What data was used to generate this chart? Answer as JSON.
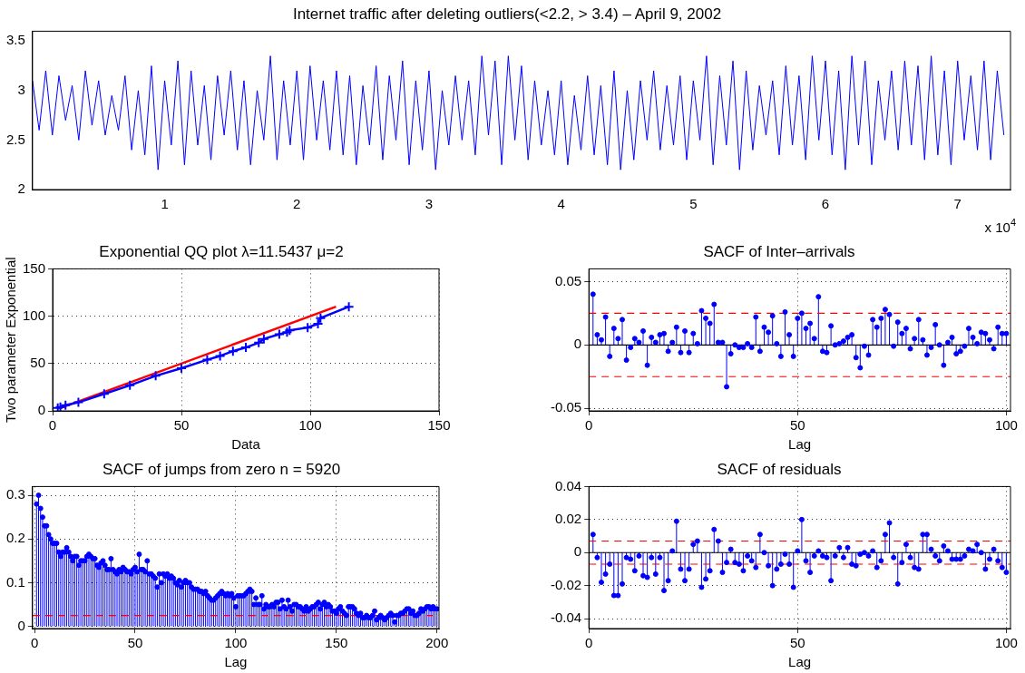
{
  "chart_data": [
    {
      "type": "line",
      "title": "Internet traffic after deleting outliers(<2.2, > 3.4) – April 9, 2002",
      "color": "#0000ff",
      "marker": "none",
      "x": [
        0,
        0.05,
        0.1,
        0.15,
        0.2,
        0.25,
        0.3,
        0.35,
        0.4,
        0.45,
        0.5,
        0.55,
        0.6,
        0.65,
        0.7,
        0.75,
        0.8,
        0.85,
        0.9,
        0.95,
        1,
        1.05,
        1.1,
        1.15,
        1.2,
        1.25,
        1.3,
        1.35,
        1.4,
        1.45,
        1.5,
        1.55,
        1.6,
        1.65,
        1.7,
        1.75,
        1.8,
        1.85,
        1.9,
        1.95,
        2,
        2.05,
        2.1,
        2.15,
        2.2,
        2.25,
        2.3,
        2.35,
        2.4,
        2.45,
        2.5,
        2.55,
        2.6,
        2.65,
        2.7,
        2.75,
        2.8,
        2.85,
        2.9,
        2.95,
        3,
        3.05,
        3.1,
        3.15,
        3.2,
        3.25,
        3.3,
        3.35,
        3.4,
        3.45,
        3.5,
        3.55,
        3.6,
        3.65,
        3.7,
        3.75,
        3.8,
        3.85,
        3.9,
        3.95,
        4,
        4.05,
        4.1,
        4.15,
        4.2,
        4.25,
        4.3,
        4.35,
        4.4,
        4.45,
        4.5,
        4.55,
        4.6,
        4.65,
        4.7,
        4.75,
        4.8,
        4.85,
        4.9,
        4.95,
        5,
        5.05,
        5.1,
        5.15,
        5.2,
        5.25,
        5.3,
        5.35,
        5.4,
        5.45,
        5.5,
        5.55,
        5.6,
        5.65,
        5.7,
        5.75,
        5.8,
        5.85,
        5.9,
        5.95,
        6,
        6.05,
        6.1,
        6.15,
        6.2,
        6.25,
        6.3,
        6.35,
        6.4,
        6.45,
        6.5,
        6.55,
        6.6,
        6.65,
        6.7,
        6.75,
        6.8,
        6.85,
        6.9,
        6.95,
        7,
        7.05,
        7.1,
        7.15,
        7.2,
        7.25,
        7.3,
        7.35
      ],
      "values": [
        3.1,
        2.6,
        3.2,
        2.55,
        3.15,
        2.7,
        3.05,
        2.5,
        3.2,
        2.65,
        3.1,
        2.55,
        2.95,
        2.6,
        3.15,
        2.4,
        3.0,
        2.35,
        3.25,
        2.2,
        3.1,
        2.45,
        3.3,
        2.25,
        3.2,
        2.45,
        3.05,
        2.3,
        3.15,
        2.55,
        3.2,
        2.4,
        3.1,
        2.25,
        3.0,
        2.5,
        3.35,
        2.3,
        3.1,
        2.45,
        3.2,
        2.3,
        3.25,
        2.5,
        3.1,
        2.4,
        3.2,
        2.35,
        3.15,
        2.25,
        3.05,
        2.45,
        3.25,
        2.3,
        3.15,
        2.5,
        3.3,
        2.25,
        3.1,
        2.4,
        3.2,
        2.2,
        3.0,
        2.45,
        3.15,
        2.5,
        3.1,
        2.35,
        3.35,
        2.55,
        3.3,
        2.25,
        3.35,
        2.5,
        3.25,
        2.3,
        3.1,
        2.45,
        3.0,
        2.35,
        3.1,
        2.25,
        2.95,
        2.4,
        3.15,
        2.35,
        3.05,
        2.25,
        3.2,
        2.2,
        3.0,
        2.3,
        3.1,
        2.5,
        3.2,
        2.4,
        3.05,
        2.45,
        3.15,
        2.3,
        3.1,
        2.5,
        3.35,
        2.25,
        3.15,
        2.45,
        3.3,
        2.2,
        3.2,
        2.4,
        3.05,
        2.55,
        3.1,
        2.35,
        3.25,
        2.45,
        3.15,
        2.3,
        3.35,
        2.5,
        3.3,
        2.35,
        3.2,
        2.2,
        3.35,
        2.45,
        3.3,
        2.25,
        3.1,
        2.5,
        3.2,
        2.4,
        3.3,
        2.45,
        3.25,
        2.3,
        3.35,
        2.35,
        3.2,
        2.25,
        3.3,
        2.5,
        3.15,
        2.4,
        3.3,
        2.3,
        3.2,
        2.55
      ],
      "xlim": [
        0,
        7.4
      ],
      "xticks": [
        1,
        2,
        3,
        4,
        5,
        6,
        7
      ],
      "ylim": [
        2,
        3.6
      ],
      "yticks": [
        2,
        2.5,
        3,
        3.5
      ],
      "grid": false,
      "annotations": [
        "x 10$^{4}$"
      ]
    },
    {
      "type": "line",
      "title": "Exponential QQ plot λ=11.5437 μ=2",
      "xlabel": "Data",
      "ylabel": "Two parameter Exponential",
      "xlim": [
        0,
        150
      ],
      "xticks": [
        0,
        50,
        100,
        150
      ],
      "ylim": [
        0,
        150
      ],
      "yticks": [
        0,
        50,
        100,
        150
      ],
      "grid": true,
      "series": [
        {
          "color": "#0000ff",
          "marker": "cross",
          "x": [
            2,
            3,
            5,
            10,
            20,
            30,
            40,
            50,
            60,
            65,
            70,
            75,
            80,
            82,
            88,
            91,
            92,
            99,
            103,
            104,
            115
          ],
          "values": [
            3,
            4,
            6,
            9,
            18,
            27,
            37,
            45,
            54,
            58,
            63,
            67,
            72,
            76,
            81,
            83,
            85,
            88,
            92,
            98,
            110
          ]
        },
        {
          "color": "#ff0000",
          "marker": "none",
          "x": [
            3,
            110
          ],
          "values": [
            3,
            110
          ]
        }
      ]
    },
    {
      "type": "lollipop",
      "title": "SACF of Inter–arrivals",
      "xlabel": "Lag",
      "xlim": [
        0,
        101
      ],
      "xticks": [
        0,
        50,
        100
      ],
      "ylim": [
        -0.052,
        0.06
      ],
      "yticks": [
        -0.05,
        0,
        0.05
      ],
      "grid": true,
      "color": "#0000ff",
      "marker": "circle",
      "x": [
        1,
        2,
        3,
        4,
        5,
        6,
        7,
        8,
        9,
        10,
        11,
        12,
        13,
        14,
        15,
        16,
        17,
        18,
        19,
        20,
        21,
        22,
        23,
        24,
        25,
        26,
        27,
        28,
        29,
        30,
        31,
        32,
        33,
        34,
        35,
        36,
        37,
        38,
        39,
        40,
        41,
        42,
        43,
        44,
        45,
        46,
        47,
        48,
        49,
        50,
        51,
        52,
        53,
        54,
        55,
        56,
        57,
        58,
        59,
        60,
        61,
        62,
        63,
        64,
        65,
        66,
        67,
        68,
        69,
        70,
        71,
        72,
        73,
        74,
        75,
        76,
        77,
        78,
        79,
        80,
        81,
        82,
        83,
        84,
        85,
        86,
        87,
        88,
        89,
        90,
        91,
        92,
        93,
        94,
        95,
        96,
        97,
        98,
        99,
        100
      ],
      "values": [
        0.04,
        0.008,
        0.004,
        0.022,
        -0.009,
        0.013,
        0.005,
        0.02,
        -0.012,
        -0.002,
        0.005,
        0.002,
        0.011,
        -0.016,
        0.006,
        0.002,
        0.008,
        0.009,
        -0.005,
        0.002,
        0.014,
        -0.006,
        0.011,
        -0.006,
        0.009,
        0.001,
        0.027,
        0.021,
        0.017,
        0.032,
        0.002,
        0.002,
        -0.033,
        -0.007,
        0,
        -0.002,
        -0.002,
        0.001,
        -0.002,
        0.022,
        -0.005,
        0.014,
        0.01,
        0.023,
        0.001,
        -0.009,
        0.026,
        0.008,
        -0.009,
        0.021,
        0.025,
        0.013,
        0.017,
        0.005,
        0.038,
        -0.005,
        -0.006,
        0.015,
        0,
        0.001,
        0.003,
        0.006,
        0.008,
        -0.01,
        -0.018,
        -0.001,
        -0.008,
        0.02,
        0.014,
        0.021,
        0.028,
        0.024,
        -0.001,
        0.018,
        0.009,
        0.013,
        -0.003,
        0.005,
        0.02,
        0.004,
        -0.008,
        -0.002,
        0.016,
        0,
        -0.016,
        0.002,
        0.006,
        -0.007,
        -0.005,
        -0.001,
        0.013,
        0.006,
        0.001,
        0.01,
        0.009,
        0.004,
        -0.003,
        0.014,
        0.009,
        0.009
      ],
      "ref_lines": [
        {
          "axis": "y",
          "value": 0.025,
          "color": "#ff0000",
          "line_style": "dashed"
        },
        {
          "axis": "y",
          "value": -0.025,
          "color": "#ff0000",
          "line_style": "dashed"
        },
        {
          "axis": "y",
          "value": 0,
          "color": "#000000",
          "line_style": "solid"
        }
      ]
    },
    {
      "type": "lollipop",
      "title": "SACF of jumps from zero n = 5920",
      "xlabel": "Lag",
      "xlim": [
        -1,
        201
      ],
      "xticks": [
        0,
        50,
        100,
        150,
        200
      ],
      "ylim": [
        -0.005,
        0.32
      ],
      "yticks": [
        0,
        0.1,
        0.2,
        0.3
      ],
      "grid": true,
      "color": "#0000ff",
      "marker": "circle",
      "x": [
        1,
        2,
        3,
        4,
        5,
        6,
        7,
        8,
        9,
        10,
        11,
        12,
        13,
        14,
        15,
        16,
        17,
        18,
        19,
        20,
        21,
        22,
        23,
        24,
        25,
        26,
        27,
        28,
        29,
        30,
        31,
        32,
        33,
        34,
        35,
        36,
        37,
        38,
        39,
        40,
        41,
        42,
        43,
        44,
        45,
        46,
        47,
        48,
        49,
        50,
        51,
        52,
        53,
        54,
        55,
        56,
        57,
        58,
        59,
        60,
        61,
        62,
        63,
        64,
        65,
        66,
        67,
        68,
        69,
        70,
        71,
        72,
        73,
        74,
        75,
        76,
        77,
        78,
        79,
        80,
        81,
        82,
        83,
        84,
        85,
        86,
        87,
        88,
        89,
        90,
        91,
        92,
        93,
        94,
        95,
        96,
        97,
        98,
        99,
        100,
        101,
        102,
        103,
        104,
        105,
        106,
        107,
        108,
        109,
        110,
        111,
        112,
        113,
        114,
        115,
        116,
        117,
        118,
        119,
        120,
        121,
        122,
        123,
        124,
        125,
        126,
        127,
        128,
        129,
        130,
        131,
        132,
        133,
        134,
        135,
        136,
        137,
        138,
        139,
        140,
        141,
        142,
        143,
        144,
        145,
        146,
        147,
        148,
        149,
        150,
        151,
        152,
        153,
        154,
        155,
        156,
        157,
        158,
        159,
        160,
        161,
        162,
        163,
        164,
        165,
        166,
        167,
        168,
        169,
        170,
        171,
        172,
        173,
        174,
        175,
        176,
        177,
        178,
        179,
        180,
        181,
        182,
        183,
        184,
        185,
        186,
        187,
        188,
        189,
        190,
        191,
        192,
        193,
        194,
        195,
        196,
        197,
        198,
        199,
        200
      ],
      "values": [
        0.28,
        0.3,
        0.27,
        0.25,
        0.23,
        0.23,
        0.21,
        0.2,
        0.19,
        0.19,
        0.19,
        0.17,
        0.16,
        0.17,
        0.17,
        0.18,
        0.17,
        0.16,
        0.15,
        0.16,
        0.16,
        0.14,
        0.15,
        0.15,
        0.15,
        0.16,
        0.165,
        0.16,
        0.155,
        0.155,
        0.14,
        0.135,
        0.145,
        0.15,
        0.14,
        0.13,
        0.13,
        0.155,
        0.13,
        0.125,
        0.12,
        0.13,
        0.125,
        0.135,
        0.13,
        0.125,
        0.125,
        0.12,
        0.13,
        0.135,
        0.125,
        0.165,
        0.13,
        0.13,
        0.125,
        0.15,
        0.12,
        0.12,
        0.115,
        0.11,
        0.09,
        0.12,
        0.1,
        0.12,
        0.115,
        0.12,
        0.11,
        0.115,
        0.11,
        0.1,
        0.095,
        0.105,
        0.09,
        0.1,
        0.105,
        0.1,
        0.1,
        0.09,
        0.085,
        0.085,
        0.085,
        0.08,
        0.08,
        0.075,
        0.08,
        0.07,
        0.065,
        0.06,
        0.06,
        0.065,
        0.07,
        0.075,
        0.08,
        0.075,
        0.07,
        0.075,
        0.07,
        0.075,
        0.065,
        0.045,
        0.07,
        0.07,
        0.07,
        0.07,
        0.075,
        0.08,
        0.085,
        0.08,
        0.05,
        0.065,
        0.05,
        0.05,
        0.07,
        0.04,
        0.05,
        0.045,
        0.045,
        0.05,
        0.045,
        0.055,
        0.055,
        0.04,
        0.06,
        0.045,
        0.04,
        0.06,
        0.045,
        0.035,
        0.05,
        0.05,
        0.045,
        0.045,
        0.04,
        0.035,
        0.045,
        0.035,
        0.04,
        0.045,
        0.045,
        0.05,
        0.055,
        0.04,
        0.05,
        0.055,
        0.045,
        0.05,
        0.045,
        0.035,
        0.035,
        0.03,
        0.04,
        0.045,
        0.035,
        0.03,
        0.025,
        0.045,
        0.045,
        0.045,
        0.04,
        0.03,
        0.025,
        0.03,
        0.02,
        0.02,
        0.025,
        0.02,
        0.02,
        0.025,
        0.035,
        0.015,
        0.02,
        0.025,
        0.02,
        0.015,
        0.02,
        0.025,
        0.03,
        0.025,
        0.01,
        0.025,
        0.025,
        0.03,
        0.03,
        0.035,
        0.04,
        0.04,
        0.03,
        0.035,
        0.025,
        0.025,
        0.03,
        0.04,
        0.035,
        0.04,
        0.045,
        0.045,
        0.04,
        0.045,
        0.04,
        0.04
      ],
      "ref_lines": [
        {
          "axis": "y",
          "value": 0.025,
          "color": "#ff0000",
          "line_style": "dashed"
        }
      ]
    },
    {
      "type": "lollipop",
      "title": "SACF of residuals",
      "xlabel": "Lag",
      "xlim": [
        0,
        101
      ],
      "xticks": [
        0,
        50,
        100
      ],
      "ylim": [
        -0.046,
        0.04
      ],
      "yticks": [
        -0.04,
        -0.02,
        0,
        0.02,
        0.04
      ],
      "grid": true,
      "color": "#0000ff",
      "marker": "circle",
      "x": [
        1,
        2,
        3,
        4,
        5,
        6,
        7,
        8,
        9,
        10,
        11,
        12,
        13,
        14,
        15,
        16,
        17,
        18,
        19,
        20,
        21,
        22,
        23,
        24,
        25,
        26,
        27,
        28,
        29,
        30,
        31,
        32,
        33,
        34,
        35,
        36,
        37,
        38,
        39,
        40,
        41,
        42,
        43,
        44,
        45,
        46,
        47,
        48,
        49,
        50,
        51,
        52,
        53,
        54,
        55,
        56,
        57,
        58,
        59,
        60,
        61,
        62,
        63,
        64,
        65,
        66,
        67,
        68,
        69,
        70,
        71,
        72,
        73,
        74,
        75,
        76,
        77,
        78,
        79,
        80,
        81,
        82,
        83,
        84,
        85,
        86,
        87,
        88,
        89,
        90,
        91,
        92,
        93,
        94,
        95,
        96,
        97,
        98,
        99,
        100
      ],
      "values": [
        0.011,
        -0.003,
        -0.018,
        -0.013,
        -0.007,
        -0.026,
        -0.026,
        -0.019,
        -0.003,
        -0.004,
        -0.011,
        -0.002,
        -0.014,
        -0.015,
        -0.003,
        -0.013,
        -0.003,
        -0.023,
        -0.017,
        0.001,
        0.019,
        -0.01,
        -0.017,
        -0.01,
        0.005,
        0.007,
        -0.021,
        -0.016,
        -0.011,
        0.014,
        0.007,
        -0.012,
        -0.006,
        0.002,
        -0.006,
        -0.007,
        -0.011,
        -0.002,
        -0.005,
        -0.009,
        0.011,
        0,
        -0.008,
        -0.02,
        -0.01,
        -0.007,
        -0.001,
        -0.007,
        -0.021,
        0.001,
        0.02,
        -0.005,
        -0.012,
        -0.002,
        0.001,
        -0.002,
        -0.003,
        -0.017,
        -0.002,
        0.003,
        -0.003,
        0.003,
        -0.007,
        -0.008,
        -0.001,
        0,
        -0.002,
        0.001,
        -0.009,
        -0.005,
        0.011,
        0.018,
        -0.003,
        -0.019,
        -0.006,
        0.005,
        -0.003,
        -0.009,
        -0.01,
        0.011,
        0.011,
        0.002,
        -0.002,
        -0.005,
        0.004,
        0.001,
        -0.004,
        -0.004,
        -0.004,
        -0.002,
        0.002,
        0.001,
        0.005,
        0,
        -0.01,
        -0.004,
        0.002,
        -0.005,
        -0.009,
        -0.012
      ],
      "ref_lines": [
        {
          "axis": "y",
          "value": 0.007,
          "color": "#ff0000",
          "line_style": "dashed"
        },
        {
          "axis": "y",
          "value": -0.007,
          "color": "#ff0000",
          "line_style": "dashed"
        },
        {
          "axis": "y",
          "value": 0,
          "color": "#000000",
          "line_style": "solid"
        }
      ]
    }
  ]
}
